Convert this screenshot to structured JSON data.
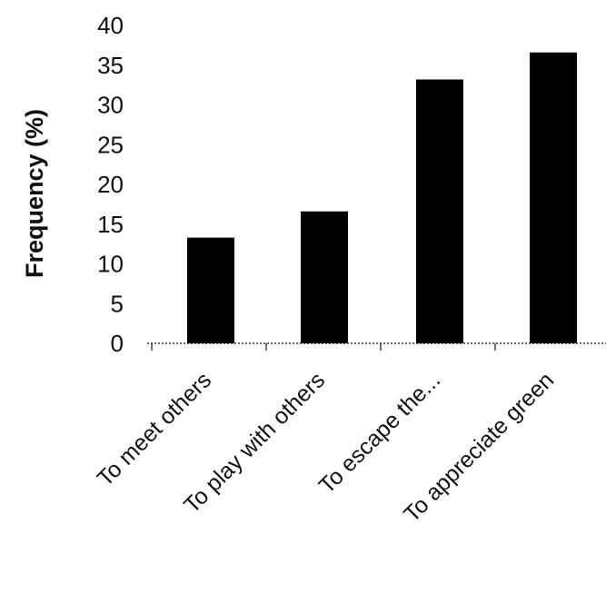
{
  "chart_data": {
    "type": "bar",
    "title": "",
    "xlabel": "",
    "ylabel": "Frequency (%)",
    "categories": [
      "To meet others",
      "To play with others",
      "To escape the...",
      "To appreciate green"
    ],
    "values": [
      13.3,
      16.6,
      33.2,
      36.6
    ],
    "ylim": [
      0,
      40
    ],
    "yticks": [
      "0",
      "5",
      "10",
      "15",
      "20",
      "25",
      "30",
      "35",
      "40"
    ],
    "grid": false,
    "legend": "none",
    "bar_color": "#000000",
    "axis_style": "dotted"
  }
}
